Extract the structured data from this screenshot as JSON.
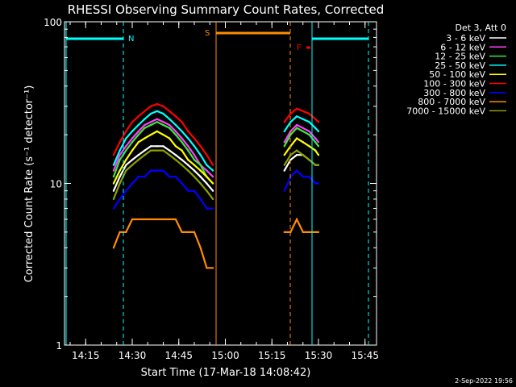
{
  "chart_data": {
    "type": "line",
    "title": "RHESSI Observing Summary Count Rates, Corrected",
    "xlabel": "Start Time (17-Mar-18 14:08:42)",
    "ylabel": "Corrected Count Rate (s⁻¹ detector⁻¹)",
    "yscale": "log",
    "ylim": [
      1,
      100
    ],
    "xlim_minutes_from_start": [
      0,
      100
    ],
    "x_ticks": [
      "14:15",
      "14:30",
      "14:45",
      "15:00",
      "15:15",
      "15:30",
      "15:45"
    ],
    "y_ticks": [
      "1",
      "10",
      "100"
    ],
    "legend_title": "Det 3, Att 0",
    "legend_position": "top-right",
    "annotations": {
      "night_label": "N",
      "saa_label": "S",
      "flare_label": "F"
    },
    "footer_date": "2-Sep-2022 19:56",
    "x": [
      "14:24",
      "14:26",
      "14:28",
      "14:30",
      "14:32",
      "14:34",
      "14:36",
      "14:38",
      "14:40",
      "14:42",
      "14:44",
      "14:46",
      "14:48",
      "14:50",
      "14:52",
      "14:54",
      "14:56",
      "15:17",
      "15:19",
      "15:21",
      "15:23",
      "15:25",
      "15:27",
      "15:29",
      "15:30"
    ],
    "series": [
      {
        "name": "3 - 6 keV",
        "color": "#ffffff",
        "values": [
          9,
          11,
          13,
          14,
          15,
          16,
          17,
          17,
          17,
          16,
          15,
          14,
          13,
          12,
          11,
          10,
          9,
          null,
          12,
          14,
          15,
          15,
          14,
          13,
          13
        ]
      },
      {
        "name": "6 - 12 keV",
        "color": "#ff3fff",
        "values": [
          12,
          15,
          17,
          19,
          21,
          23,
          24,
          25,
          24,
          23,
          21,
          19,
          17,
          15,
          13,
          12,
          11,
          null,
          18,
          21,
          23,
          22,
          21,
          19,
          18
        ]
      },
      {
        "name": "12 - 25 keV",
        "color": "#3fe83f",
        "values": [
          11,
          14,
          16,
          18,
          20,
          22,
          23,
          24,
          23,
          22,
          20,
          18,
          16,
          14,
          13,
          11,
          10,
          null,
          17,
          20,
          22,
          21,
          20,
          18,
          17
        ]
      },
      {
        "name": "25 - 50 keV",
        "color": "#00ffff",
        "values": [
          13,
          16,
          19,
          21,
          23,
          25,
          27,
          28,
          27,
          25,
          23,
          21,
          19,
          17,
          15,
          13,
          12,
          null,
          21,
          24,
          26,
          25,
          24,
          22,
          21
        ]
      },
      {
        "name": "50 - 100 keV",
        "color": "#ffff00",
        "values": [
          10,
          12,
          14,
          16,
          18,
          19,
          20,
          21,
          20,
          19,
          17,
          16,
          14,
          13,
          12,
          11,
          10,
          null,
          15,
          17,
          19,
          18,
          17,
          16,
          15
        ]
      },
      {
        "name": "100 - 300 keV",
        "color": "#ff0000",
        "values": [
          15,
          18,
          21,
          24,
          26,
          28,
          30,
          31,
          30,
          28,
          26,
          24,
          21,
          19,
          17,
          15,
          13,
          null,
          24,
          27,
          29,
          28,
          27,
          25,
          24
        ]
      },
      {
        "name": "300 - 800 keV",
        "color": "#0000ff",
        "values": [
          7,
          8,
          9,
          10,
          11,
          11,
          12,
          12,
          12,
          11,
          11,
          10,
          9,
          9,
          8,
          7,
          7,
          null,
          9,
          11,
          12,
          11,
          11,
          10,
          10
        ]
      },
      {
        "name": "800 - 7000 keV",
        "color": "#ff8c00",
        "values": [
          4,
          5,
          5,
          6,
          6,
          6,
          6,
          6,
          6,
          6,
          6,
          5,
          5,
          5,
          4,
          3,
          3,
          null,
          5,
          5,
          6,
          5,
          5,
          5,
          5
        ]
      },
      {
        "name": "7000 - 15000 keV",
        "color": "#8fa000",
        "values": [
          8,
          10,
          12,
          13,
          14,
          15,
          16,
          16,
          16,
          15,
          14,
          13,
          12,
          11,
          10,
          9,
          8,
          null,
          13,
          15,
          16,
          15,
          14,
          13,
          13
        ]
      }
    ]
  }
}
